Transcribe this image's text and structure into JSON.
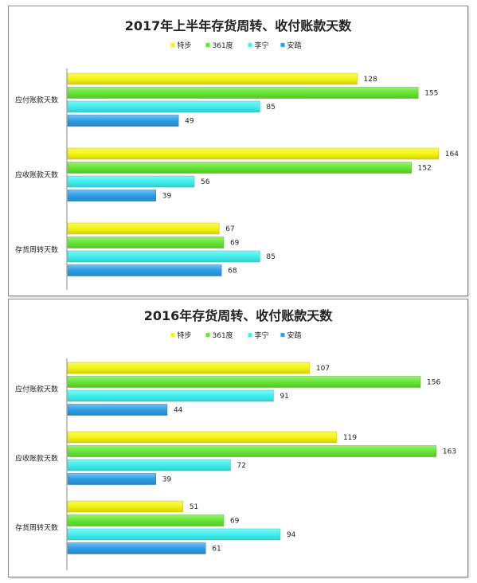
{
  "colors": {
    "特步": "#f5f50f",
    "361度": "#66e632",
    "李宁": "#3ff0ee",
    "安踏": "#2b9ee8"
  },
  "chart_data": [
    {
      "type": "bar",
      "orientation": "horizontal",
      "title": "2017年上半年存货周转、收付账款天数",
      "categories": [
        "应付账款天数",
        "应收账款天数",
        "存货周转天数"
      ],
      "series": [
        {
          "name": "特步",
          "values": [
            128,
            164,
            67
          ]
        },
        {
          "name": "361度",
          "values": [
            155,
            152,
            69
          ]
        },
        {
          "name": "李宁",
          "values": [
            85,
            56,
            85
          ]
        },
        {
          "name": "安踏",
          "values": [
            49,
            39,
            68
          ]
        }
      ],
      "xlim": [
        0,
        170
      ],
      "legend": "top",
      "grid": false,
      "data_labels": true
    },
    {
      "type": "bar",
      "orientation": "horizontal",
      "title": "2016年存货周转、收付账款天数",
      "categories": [
        "应付账款天数",
        "应收账款天数",
        "存货周转天数"
      ],
      "series": [
        {
          "name": "特步",
          "values": [
            107,
            119,
            51
          ]
        },
        {
          "name": "361度",
          "values": [
            156,
            163,
            69
          ]
        },
        {
          "name": "李宁",
          "values": [
            91,
            72,
            94
          ]
        },
        {
          "name": "安踏",
          "values": [
            44,
            39,
            61
          ]
        }
      ],
      "xlim": [
        0,
        170
      ],
      "legend": "top",
      "grid": false,
      "data_labels": true
    }
  ]
}
